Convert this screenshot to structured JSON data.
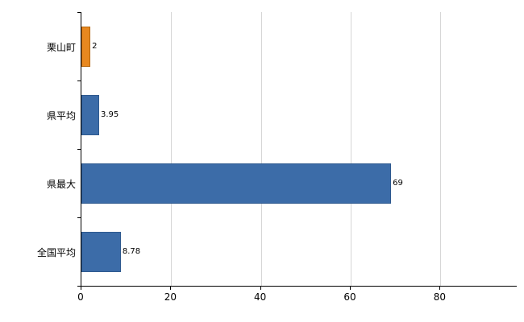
{
  "chart_data": {
    "type": "bar",
    "orientation": "horizontal",
    "title": "",
    "xlabel": "",
    "ylabel": "",
    "categories": [
      "栗山町",
      "県平均",
      "県最大",
      "全国平均"
    ],
    "values": [
      2,
      3.95,
      69,
      8.78
    ],
    "value_labels": [
      "2",
      "3.95",
      "69",
      "8.78"
    ],
    "bar_colors": [
      "#e8881f",
      "#3c6ca8",
      "#3c6ca8",
      "#3c6ca8"
    ],
    "bar_border_colors": [
      "#b5670f",
      "#2f5a8f",
      "#2f5a8f",
      "#2f5a8f"
    ],
    "x_ticks": [
      "0",
      "20",
      "40",
      "60",
      "80"
    ],
    "x_tick_values": [
      0,
      20,
      40,
      60,
      80
    ],
    "xlim": [
      0,
      97
    ],
    "grid": true,
    "legend_visible": false,
    "axis_color": "#000000",
    "gridline_color": "#d6d6d6",
    "label_color": "#000000",
    "background_color": "#ffffff"
  }
}
